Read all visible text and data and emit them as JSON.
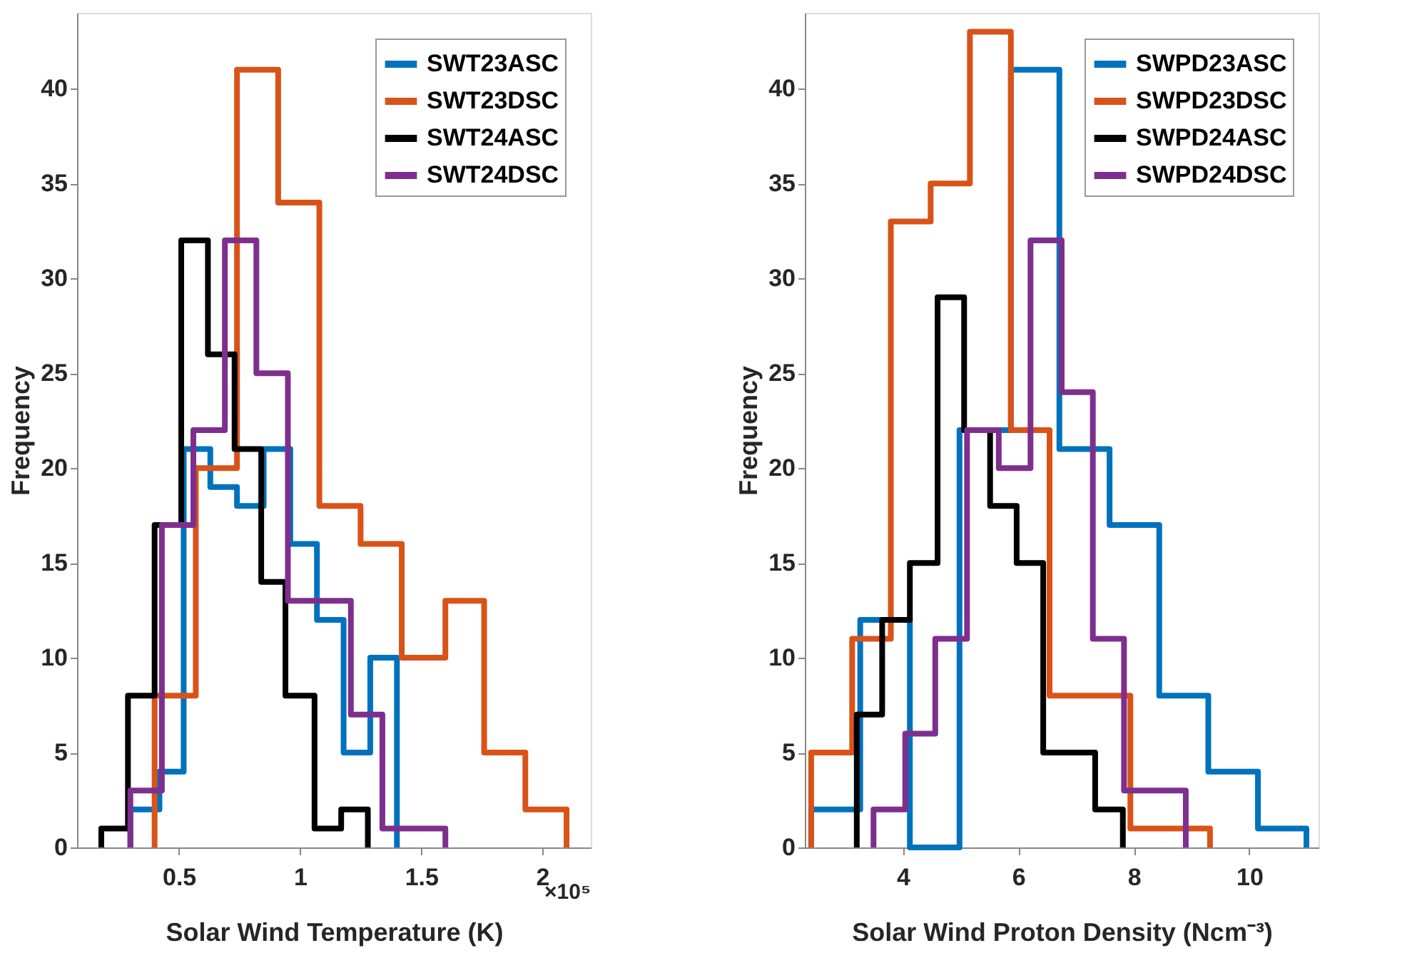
{
  "chart_data": [
    {
      "type": "step",
      "xlabel": "Solar Wind Temperature (K)",
      "ylabel": "Frequency",
      "annotations": [
        "×10⁵"
      ],
      "xlim": [
        0.08,
        2.2
      ],
      "xticks": [
        0.5,
        1,
        1.5,
        2
      ],
      "ylim": [
        0,
        44
      ],
      "yticks": [
        0,
        5,
        10,
        15,
        20,
        25,
        30,
        35,
        40
      ],
      "grid": false,
      "legend": "top right",
      "series": [
        {
          "name": "SWT23ASC",
          "color": "#0072bd",
          "x": [
            0.3,
            0.3,
            0.42,
            0.52,
            0.63,
            0.74,
            0.85,
            0.96,
            1.07,
            1.18,
            1.29,
            1.4
          ],
          "values": [
            0,
            2,
            4,
            21,
            19,
            18,
            21,
            16,
            12,
            5,
            10,
            0
          ]
        },
        {
          "name": "SWT23DSC",
          "color": "#d95319",
          "x": [
            0.4,
            0.4,
            0.57,
            0.74,
            0.91,
            1.08,
            1.25,
            1.42,
            1.6,
            1.76,
            1.93,
            2.1
          ],
          "values": [
            0,
            8,
            20,
            41,
            34,
            18,
            16,
            10,
            13,
            5,
            2,
            0
          ]
        },
        {
          "name": "SWT24ASC",
          "color": "#000000",
          "x": [
            0.18,
            0.18,
            0.29,
            0.4,
            0.51,
            0.62,
            0.73,
            0.84,
            0.94,
            1.06,
            1.17,
            1.28
          ],
          "values": [
            0,
            1,
            8,
            17,
            32,
            26,
            21,
            14,
            8,
            1,
            2,
            0
          ]
        },
        {
          "name": "SWT24DSC",
          "color": "#7e2f8e",
          "x": [
            0.3,
            0.3,
            0.43,
            0.56,
            0.69,
            0.82,
            0.95,
            1.08,
            1.21,
            1.34,
            1.47,
            1.6
          ],
          "values": [
            0,
            3,
            17,
            22,
            32,
            25,
            13,
            13,
            7,
            1,
            1,
            0
          ]
        }
      ]
    },
    {
      "type": "step",
      "xlabel": "Solar Wind Proton Density (Ncm⁻³)",
      "ylabel": "Frequency",
      "xlim": [
        2.3,
        11.2
      ],
      "xticks": [
        4,
        6,
        8,
        10
      ],
      "ylim": [
        0,
        44
      ],
      "yticks": [
        0,
        5,
        10,
        15,
        20,
        25,
        30,
        35,
        40
      ],
      "grid": false,
      "legend": "top right",
      "series": [
        {
          "name": "SWPD23ASC",
          "color": "#0072bd",
          "x": [
            2.41,
            2.41,
            3.26,
            4.12,
            4.98,
            5.87,
            6.71,
            7.58,
            8.44,
            9.29,
            10.15,
            10.99
          ],
          "values": [
            0,
            2,
            12,
            0,
            22,
            41,
            21,
            17,
            8,
            4,
            1,
            0
          ]
        },
        {
          "name": "SWPD23DSC",
          "color": "#d95319",
          "x": [
            2.41,
            2.41,
            3.12,
            3.79,
            4.48,
            5.16,
            5.87,
            6.54,
            7.24,
            7.94,
            8.63,
            9.32
          ],
          "values": [
            0,
            5,
            11,
            33,
            35,
            43,
            22,
            8,
            8,
            1,
            1,
            0
          ]
        },
        {
          "name": "SWPD24ASC",
          "color": "#000000",
          "x": [
            3.2,
            3.2,
            3.64,
            4.12,
            4.6,
            5.06,
            5.51,
            5.97,
            6.43,
            6.89,
            7.33,
            7.81
          ],
          "values": [
            0,
            7,
            12,
            15,
            29,
            22,
            18,
            15,
            5,
            5,
            2,
            0
          ]
        },
        {
          "name": "SWPD24DSC",
          "color": "#7e2f8e",
          "x": [
            3.49,
            3.49,
            4.04,
            4.56,
            5.11,
            5.66,
            6.21,
            6.75,
            7.29,
            7.83,
            8.36,
            8.9
          ],
          "values": [
            0,
            2,
            6,
            11,
            22,
            20,
            32,
            24,
            11,
            3,
            3,
            0
          ]
        }
      ]
    }
  ]
}
